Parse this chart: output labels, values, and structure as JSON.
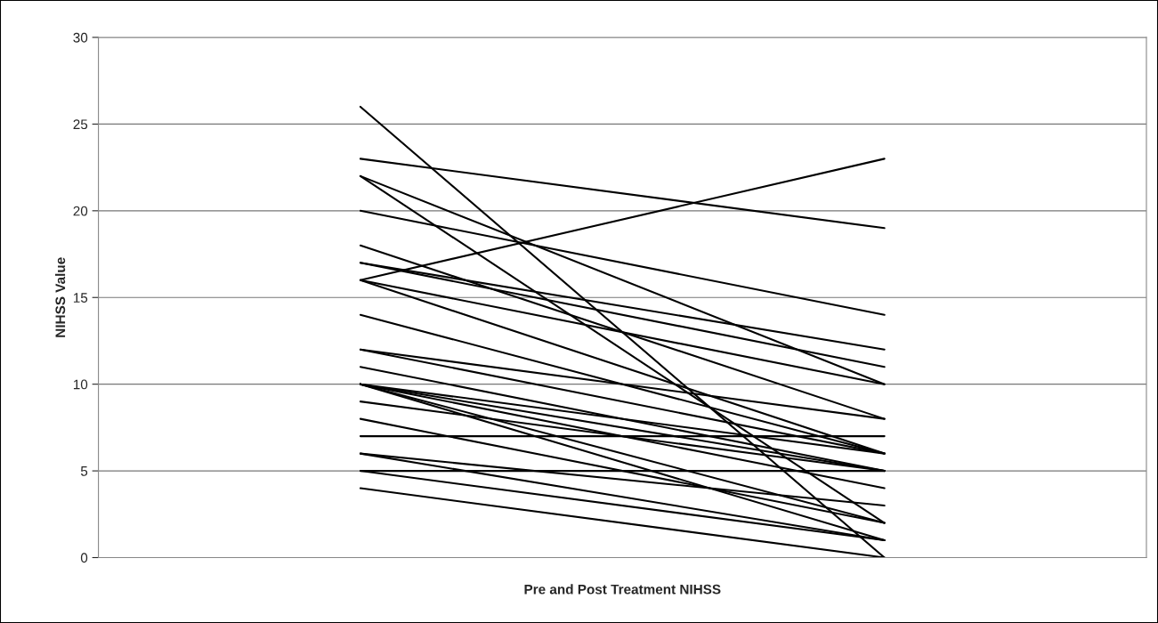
{
  "chart_data": {
    "type": "line",
    "xlabel": "Pre and Post Treatment NIHSS",
    "ylabel": "NIHSS Value",
    "categories": [
      null,
      null
    ],
    "ylim": [
      0,
      30
    ],
    "yticks": [
      0,
      5,
      10,
      15,
      20,
      25,
      30
    ],
    "grid": "y",
    "legend": false,
    "marker": "none",
    "line_style": "solid",
    "series": [
      {
        "color": "#000000",
        "values": [
          26,
          0
        ]
      },
      {
        "color": "#000000",
        "values": [
          23,
          19
        ]
      },
      {
        "color": "#000000",
        "values": [
          22,
          2
        ]
      },
      {
        "color": "#000000",
        "values": [
          22,
          10
        ]
      },
      {
        "color": "#000000",
        "values": [
          20,
          14
        ]
      },
      {
        "color": "#000000",
        "values": [
          18,
          8
        ]
      },
      {
        "color": "#000000",
        "values": [
          17,
          12
        ]
      },
      {
        "color": "#000000",
        "values": [
          17,
          11
        ]
      },
      {
        "color": "#000000",
        "values": [
          16,
          23
        ]
      },
      {
        "color": "#000000",
        "values": [
          16,
          10
        ]
      },
      {
        "color": "#000000",
        "values": [
          16,
          6
        ]
      },
      {
        "color": "#000000",
        "values": [
          14,
          6
        ]
      },
      {
        "color": "#000000",
        "values": [
          12,
          8
        ]
      },
      {
        "color": "#000000",
        "values": [
          12,
          6
        ]
      },
      {
        "color": "#000000",
        "values": [
          11,
          5
        ]
      },
      {
        "color": "#000000",
        "values": [
          10,
          6
        ]
      },
      {
        "color": "#000000",
        "values": [
          10,
          5
        ]
      },
      {
        "color": "#000000",
        "values": [
          10,
          4
        ]
      },
      {
        "color": "#000000",
        "values": [
          10,
          2
        ]
      },
      {
        "color": "#000000",
        "values": [
          10,
          1
        ]
      },
      {
        "color": "#000000",
        "values": [
          9,
          5
        ]
      },
      {
        "color": "#000000",
        "values": [
          8,
          2
        ]
      },
      {
        "color": "#000000",
        "values": [
          7,
          7
        ]
      },
      {
        "color": "#000000",
        "values": [
          6,
          3
        ]
      },
      {
        "color": "#000000",
        "values": [
          6,
          1
        ]
      },
      {
        "color": "#000000",
        "values": [
          5,
          5
        ]
      },
      {
        "color": "#000000",
        "values": [
          5,
          1
        ]
      },
      {
        "color": "#000000",
        "values": [
          4,
          0
        ]
      }
    ]
  }
}
